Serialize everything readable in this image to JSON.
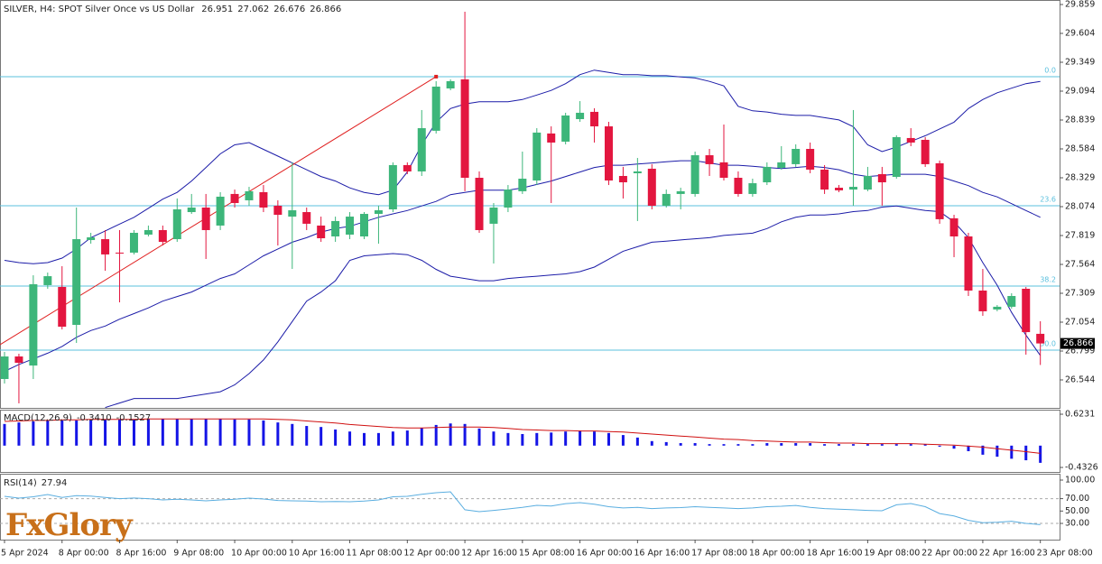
{
  "chart_data": {
    "type": "candlestick",
    "title": "SILVER, H4:  SPOT Silver Once vs US Dollar",
    "categories": [
      "5 Apr 2024",
      null,
      null,
      null,
      "8 Apr 00:00",
      null,
      null,
      null,
      "8 Apr 16:00",
      null,
      null,
      null,
      "9 Apr 08:00",
      null,
      null,
      null,
      "10 Apr 00:00",
      null,
      null,
      null,
      "10 Apr 16:00",
      null,
      null,
      null,
      "11 Apr 08:00",
      null,
      null,
      null,
      "12 Apr 00:00",
      null,
      null,
      null,
      "12 Apr 16:00",
      null,
      null,
      null,
      "15 Apr 08:00",
      null,
      null,
      null,
      "16 Apr 00:00",
      null,
      null,
      null,
      "16 Apr 16:00",
      null,
      null,
      null,
      "17 Apr 08:00",
      null,
      null,
      null,
      "18 Apr 00:00",
      null,
      null,
      null,
      "18 Apr 16:00",
      null,
      null,
      null,
      "19 Apr 08:00",
      null,
      null,
      null,
      "22 Apr 00:00",
      null,
      null,
      null,
      "22 Apr 16:00",
      null,
      null,
      null,
      "23 Apr 08:00"
    ],
    "open": [
      26.552,
      26.751,
      26.671,
      27.381,
      27.365,
      27.03,
      27.779,
      27.787,
      27.668,
      27.668,
      27.827,
      27.867,
      27.787,
      28.026,
      28.066,
      27.907,
      28.186,
      28.13,
      28.202,
      28.082,
      27.986,
      28.026,
      27.907,
      27.811,
      27.827,
      27.811,
      28.01,
      28.05,
      28.441,
      28.385,
      28.744,
      29.118,
      29.198,
      28.329,
      27.923,
      28.066,
      28.21,
      28.305,
      28.72,
      28.648,
      28.847,
      28.911,
      28.783,
      28.345,
      28.369,
      28.409,
      28.082,
      28.186,
      28.186,
      28.528,
      28.465,
      28.329,
      28.186,
      28.289,
      28.417,
      28.449,
      28.584,
      28.401,
      28.241,
      28.225,
      28.225,
      28.361,
      28.337,
      28.68,
      28.664,
      28.457,
      27.971,
      27.811,
      27.333,
      27.166,
      27.19,
      27.349,
      26.951
    ],
    "high": [
      26.791,
      26.775,
      27.468,
      27.492,
      27.548,
      28.066,
      27.843,
      27.867,
      27.867,
      27.867,
      27.907,
      27.907,
      28.146,
      28.186,
      28.186,
      28.202,
      28.225,
      28.249,
      28.265,
      28.13,
      28.465,
      28.066,
      27.986,
      27.986,
      28.026,
      28.026,
      28.082,
      28.465,
      28.465,
      28.927,
      29.182,
      29.198,
      29.795,
      28.385,
      28.106,
      28.265,
      28.56,
      28.767,
      28.783,
      28.903,
      29.006,
      28.943,
      28.823,
      28.425,
      28.504,
      28.449,
      28.225,
      28.241,
      28.56,
      28.584,
      28.799,
      28.385,
      28.321,
      28.465,
      28.608,
      28.624,
      28.64,
      28.441,
      28.265,
      28.927,
      28.425,
      28.425,
      28.704,
      28.767,
      28.688,
      28.481,
      28.002,
      27.843,
      27.524,
      27.205,
      27.309,
      27.365,
      27.062
    ],
    "low": [
      26.512,
      26.337,
      26.552,
      27.349,
      26.99,
      26.871,
      27.747,
      27.508,
      27.229,
      27.652,
      27.811,
      27.731,
      27.763,
      28.01,
      27.612,
      27.867,
      28.066,
      28.082,
      28.026,
      27.731,
      27.524,
      27.867,
      27.763,
      27.763,
      27.787,
      27.787,
      27.747,
      28.026,
      28.361,
      28.345,
      28.72,
      29.102,
      28.21,
      27.843,
      27.572,
      28.026,
      28.186,
      28.265,
      28.106,
      28.624,
      28.823,
      28.64,
      28.265,
      28.146,
      27.947,
      28.05,
      28.066,
      28.05,
      28.162,
      28.345,
      28.305,
      28.162,
      28.162,
      28.265,
      28.401,
      28.425,
      28.369,
      28.186,
      28.202,
      28.082,
      28.21,
      28.082,
      28.321,
      28.608,
      28.425,
      27.923,
      27.628,
      27.285,
      27.11,
      27.15,
      27.174,
      26.767,
      26.676
    ],
    "close": [
      26.751,
      26.695,
      27.389,
      27.46,
      27.014,
      27.787,
      27.803,
      27.652,
      27.66,
      27.843,
      27.867,
      27.763,
      28.05,
      28.066,
      27.867,
      28.162,
      28.106,
      28.21,
      28.066,
      28.002,
      28.042,
      27.923,
      27.795,
      27.947,
      27.986,
      28.01,
      28.042,
      28.441,
      28.385,
      28.767,
      29.134,
      29.182,
      28.329,
      27.867,
      28.066,
      28.225,
      28.321,
      28.728,
      28.64,
      28.879,
      28.903,
      28.783,
      28.305,
      28.289,
      28.385,
      28.082,
      28.186,
      28.21,
      28.528,
      28.449,
      28.329,
      28.186,
      28.281,
      28.425,
      28.465,
      28.584,
      28.401,
      28.225,
      28.218,
      28.249,
      28.345,
      28.289,
      28.688,
      28.64,
      28.449,
      27.963,
      27.811,
      27.333,
      27.15,
      27.19,
      27.285,
      26.966,
      26.866
    ],
    "up_color": "#3db67a",
    "down_color": "#e3163f",
    "ylim": [
      26.297,
      29.859
    ],
    "yticks": [
      29.859,
      29.604,
      29.349,
      29.094,
      28.839,
      28.584,
      28.329,
      28.074,
      27.819,
      27.564,
      27.309,
      27.054,
      26.799,
      26.544
    ],
    "bands": [
      {
        "color": "#1c1ca8",
        "values": [
          27.6,
          27.58,
          27.57,
          27.58,
          27.62,
          27.7,
          27.8,
          27.86,
          27.92,
          27.98,
          28.06,
          28.14,
          28.2,
          28.3,
          28.42,
          28.54,
          28.62,
          28.64,
          28.58,
          28.52,
          28.46,
          28.4,
          28.34,
          28.3,
          28.24,
          28.2,
          28.18,
          28.22,
          28.38,
          28.62,
          28.82,
          28.94,
          28.98,
          29.0,
          29.0,
          29.0,
          29.02,
          29.06,
          29.1,
          29.16,
          29.24,
          29.28,
          29.26,
          29.24,
          29.24,
          29.23,
          29.23,
          29.22,
          29.21,
          29.18,
          29.14,
          28.96,
          28.92,
          28.91,
          28.89,
          28.88,
          28.88,
          28.86,
          28.84,
          28.78,
          28.62,
          28.56,
          28.6,
          28.65,
          28.7,
          28.76,
          28.82,
          28.94,
          29.02,
          29.08,
          29.12,
          29.16,
          29.18
        ]
      },
      {
        "color": "#1c1ca8",
        "values": [
          26.62,
          26.68,
          26.73,
          26.78,
          26.84,
          26.92,
          26.98,
          27.02,
          27.08,
          27.13,
          27.18,
          27.24,
          27.28,
          27.32,
          27.38,
          27.44,
          27.48,
          27.56,
          27.64,
          27.7,
          27.76,
          27.8,
          27.85,
          27.88,
          27.9,
          27.94,
          27.98,
          28.01,
          28.04,
          28.08,
          28.12,
          28.18,
          28.2,
          28.22,
          28.22,
          28.22,
          28.24,
          28.27,
          28.3,
          28.34,
          28.38,
          28.42,
          28.44,
          28.44,
          28.45,
          28.46,
          28.47,
          28.48,
          28.48,
          28.46,
          28.44,
          28.44,
          28.43,
          28.42,
          28.41,
          28.42,
          28.43,
          28.42,
          28.4,
          28.36,
          28.34,
          28.35,
          28.36,
          28.36,
          28.36,
          28.34,
          28.3,
          28.26,
          28.2,
          28.16,
          28.1,
          28.04,
          27.98
        ]
      },
      {
        "color": "#1c1ca8",
        "values": [
          null,
          null,
          null,
          null,
          null,
          null,
          null,
          26.3,
          26.34,
          26.38,
          26.38,
          26.38,
          26.38,
          26.4,
          26.42,
          26.44,
          26.5,
          26.6,
          26.72,
          26.88,
          27.06,
          27.24,
          27.32,
          27.42,
          27.6,
          27.64,
          27.65,
          27.66,
          27.65,
          27.6,
          27.52,
          27.46,
          27.44,
          27.42,
          27.42,
          27.44,
          27.45,
          27.46,
          27.47,
          27.48,
          27.5,
          27.54,
          27.61,
          27.68,
          27.72,
          27.76,
          27.77,
          27.78,
          27.79,
          27.8,
          27.82,
          27.83,
          27.84,
          27.88,
          27.94,
          27.98,
          28.0,
          28.0,
          28.01,
          28.03,
          28.04,
          28.07,
          28.08,
          28.06,
          28.04,
          28.03,
          27.94,
          27.8,
          27.58,
          27.38,
          27.14,
          26.94,
          26.76
        ]
      }
    ],
    "fib_color": "#5bc0de",
    "fib_levels": [
      {
        "name": "0.0",
        "price": 29.222
      },
      {
        "name": "23.6",
        "price": 28.082
      },
      {
        "name": "38.2",
        "price": 27.373
      },
      {
        "name": "50.0",
        "price": 26.807
      }
    ],
    "trendline": {
      "color": "#e02020",
      "values": [
        26.855,
        29.222
      ]
    },
    "macd": {
      "label": "MACD(12,26,9)",
      "readout": [
        "-0.3410",
        "-0.1527"
      ],
      "ylim": [
        -0.522,
        0.695
      ],
      "yticks": [
        0.6231,
        -0.4326
      ],
      "hist_color": "#1414e6",
      "signal_color": "#d01010",
      "values": [
        0.43,
        0.46,
        0.48,
        0.5,
        0.5,
        0.5,
        0.5,
        0.52,
        0.52,
        0.52,
        0.53,
        0.53,
        0.53,
        0.53,
        0.53,
        0.53,
        0.52,
        0.52,
        0.5,
        0.46,
        0.43,
        0.39,
        0.37,
        0.32,
        0.28,
        0.25,
        0.25,
        0.28,
        0.3,
        0.35,
        0.41,
        0.44,
        0.43,
        0.34,
        0.28,
        0.25,
        0.23,
        0.25,
        0.26,
        0.28,
        0.3,
        0.28,
        0.25,
        0.21,
        0.16,
        0.09,
        0.07,
        0.05,
        0.05,
        0.03,
        0.03,
        0.03,
        0.03,
        0.05,
        0.05,
        0.05,
        0.05,
        0.03,
        0.03,
        0.03,
        0.03,
        0.03,
        0.03,
        0.03,
        0.03,
        -0.02,
        -0.06,
        -0.11,
        -0.18,
        -0.22,
        -0.26,
        -0.29,
        -0.341
      ],
      "signal": [
        0.48,
        0.49,
        0.5,
        0.5,
        0.51,
        0.51,
        0.52,
        0.52,
        0.52,
        0.52,
        0.53,
        0.53,
        0.53,
        0.53,
        0.53,
        0.53,
        0.53,
        0.53,
        0.53,
        0.52,
        0.51,
        0.49,
        0.47,
        0.45,
        0.42,
        0.4,
        0.38,
        0.36,
        0.35,
        0.35,
        0.36,
        0.37,
        0.37,
        0.37,
        0.36,
        0.34,
        0.32,
        0.31,
        0.3,
        0.3,
        0.29,
        0.29,
        0.28,
        0.27,
        0.25,
        0.23,
        0.21,
        0.19,
        0.17,
        0.15,
        0.13,
        0.12,
        0.1,
        0.09,
        0.08,
        0.07,
        0.07,
        0.06,
        0.05,
        0.05,
        0.04,
        0.04,
        0.04,
        0.04,
        0.03,
        0.02,
        0.01,
        -0.01,
        -0.03,
        -0.06,
        -0.09,
        -0.12,
        -0.1527
      ]
    },
    "rsi": {
      "label": "RSI(14)",
      "color": "#5aaee0",
      "ylim": [
        3.8,
        107.3
      ],
      "yticks": [
        {
          "value": 100,
          "label": "100.00"
        },
        {
          "value": 70,
          "label": "70.00"
        },
        {
          "value": 50,
          "label": "50.00"
        },
        {
          "value": 30,
          "label": "30.00"
        }
      ],
      "levels": [
        70,
        30
      ],
      "values": [
        73.8,
        70.8,
        73,
        76.7,
        72,
        75,
        74,
        72,
        70,
        71,
        70,
        68,
        69,
        68,
        66.5,
        68,
        69,
        70.8,
        69.4,
        67,
        66.5,
        66,
        65,
        65.5,
        65,
        66,
        68,
        73,
        73.8,
        77,
        79.6,
        81,
        52,
        49,
        51,
        53.4,
        56,
        59.2,
        58,
        62,
        63.6,
        61,
        57,
        55,
        56,
        54,
        55,
        55.5,
        57,
        56,
        55,
        54,
        55,
        57,
        57.7,
        59,
        56,
        54,
        53,
        52,
        51,
        50.4,
        60,
        62.1,
        57,
        46,
        42,
        35,
        31,
        32,
        33.5,
        30,
        27.94
      ]
    },
    "logo": "FxGlory"
  }
}
